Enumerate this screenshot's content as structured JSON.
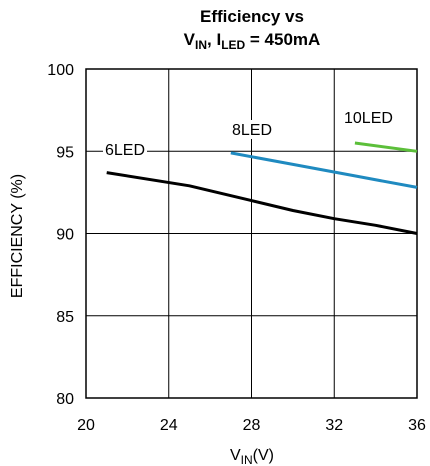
{
  "chart_data": {
    "type": "line",
    "title_line1": "Efficiency vs",
    "title_line2": {
      "v": "V",
      "v_sub": "IN",
      "sep": ", I",
      "i_sub": "LED",
      "rest": " = 450mA"
    },
    "xlabel": {
      "main": "V",
      "sub": "IN",
      "unit": "(V)"
    },
    "ylabel": "EFFICIENCY (%)",
    "xlim": [
      20,
      36
    ],
    "ylim": [
      80,
      100
    ],
    "xticks": [
      20,
      24,
      28,
      32,
      36
    ],
    "yticks": [
      80,
      85,
      90,
      95,
      100
    ],
    "grid": true,
    "series": [
      {
        "name": "6LED",
        "color": "#000000",
        "x": [
          21,
          25,
          28,
          30,
          32,
          34,
          36
        ],
        "y": [
          93.7,
          92.9,
          92.0,
          91.4,
          90.9,
          90.5,
          90.0
        ]
      },
      {
        "name": "8LED",
        "color": "#1f8ac0",
        "x": [
          27,
          30,
          33,
          36
        ],
        "y": [
          94.9,
          94.2,
          93.5,
          92.8
        ]
      },
      {
        "name": "10LED",
        "color": "#5cbf3a",
        "x": [
          33,
          36
        ],
        "y": [
          95.5,
          95.0
        ]
      }
    ]
  }
}
